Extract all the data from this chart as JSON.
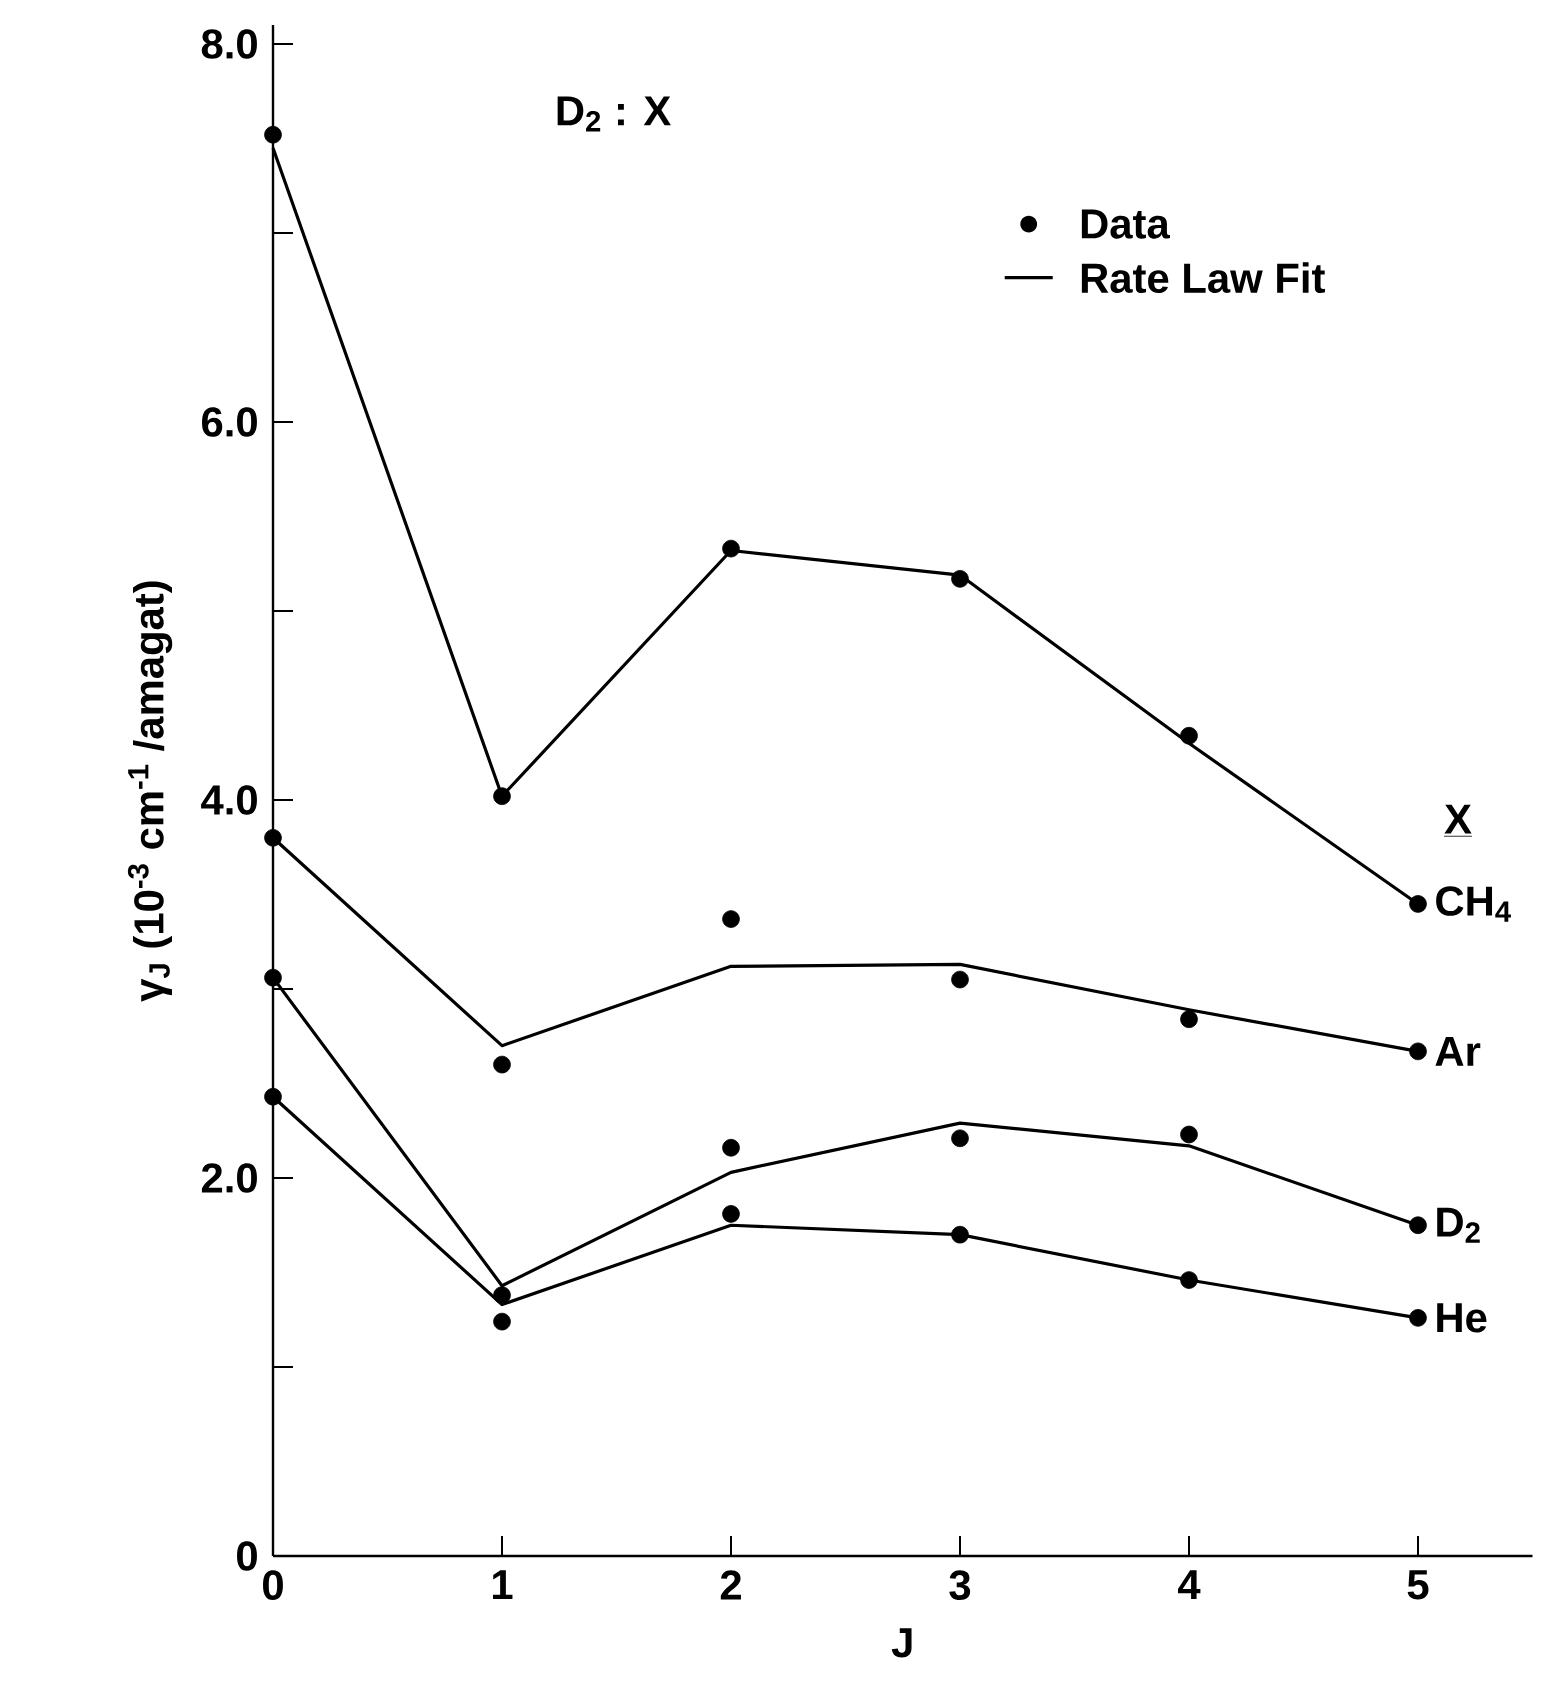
{
  "chart_data": {
    "type": "line",
    "title": "D$_{2}$ : X",
    "xlabel": "J",
    "ylabel": "γ$_{J}$ (10$^{-3}$ cm$^{-1}$ /amagat)",
    "legend_title": "X",
    "x": [
      0,
      1,
      2,
      3,
      4,
      5
    ],
    "xlim": [
      0,
      5.5
    ],
    "xticks": [
      0,
      1,
      2,
      3,
      4,
      5
    ],
    "ylim": [
      0,
      8.1
    ],
    "yticks": [
      0,
      {
        "value": 1,
        "label": null
      },
      {
        "value": 2,
        "label": "2.0"
      },
      {
        "value": 3,
        "label": null
      },
      {
        "value": 4,
        "label": "4.0"
      },
      {
        "value": 5,
        "label": null
      },
      {
        "value": 6,
        "label": "6.0"
      },
      {
        "value": 7,
        "label": null
      },
      {
        "value": 8,
        "label": "8.0"
      }
    ],
    "legend": "top right",
    "line_style": "solid",
    "annotations": [
      "Rate Law Fit"
    ],
    "series": [
      {
        "name": "Data",
        "type": "scatter",
        "marker": "circle",
        "color": "#000000",
        "x": [
          0,
          1,
          2,
          3,
          4,
          5,
          0,
          1,
          2,
          3,
          4,
          5,
          0,
          1,
          2,
          3,
          4,
          5,
          0,
          1,
          2,
          3,
          4,
          5
        ],
        "values": [
          7.52,
          4.02,
          5.33,
          5.17,
          4.34,
          3.45,
          3.8,
          2.6,
          3.37,
          3.05,
          2.84,
          2.67,
          3.06,
          1.38,
          2.16,
          2.21,
          2.23,
          1.75,
          2.43,
          1.24,
          1.81,
          1.7,
          1.46,
          1.26
        ]
      },
      {
        "name": "CH$_{4}$",
        "marker": "none",
        "color": "#000000",
        "values": [
          7.45,
          4.02,
          5.32,
          5.19,
          4.3,
          3.45
        ]
      },
      {
        "name": "Ar",
        "marker": "none",
        "color": "#000000",
        "values": [
          3.8,
          2.7,
          3.12,
          3.13,
          2.89,
          2.67
        ]
      },
      {
        "name": "D$_{2}$",
        "marker": "none",
        "color": "#000000",
        "values": [
          3.06,
          1.43,
          2.03,
          2.29,
          2.17,
          1.75
        ]
      },
      {
        "name": "He",
        "marker": "none",
        "color": "#000000",
        "values": [
          2.43,
          1.33,
          1.75,
          1.7,
          1.46,
          1.26
        ]
      }
    ]
  }
}
